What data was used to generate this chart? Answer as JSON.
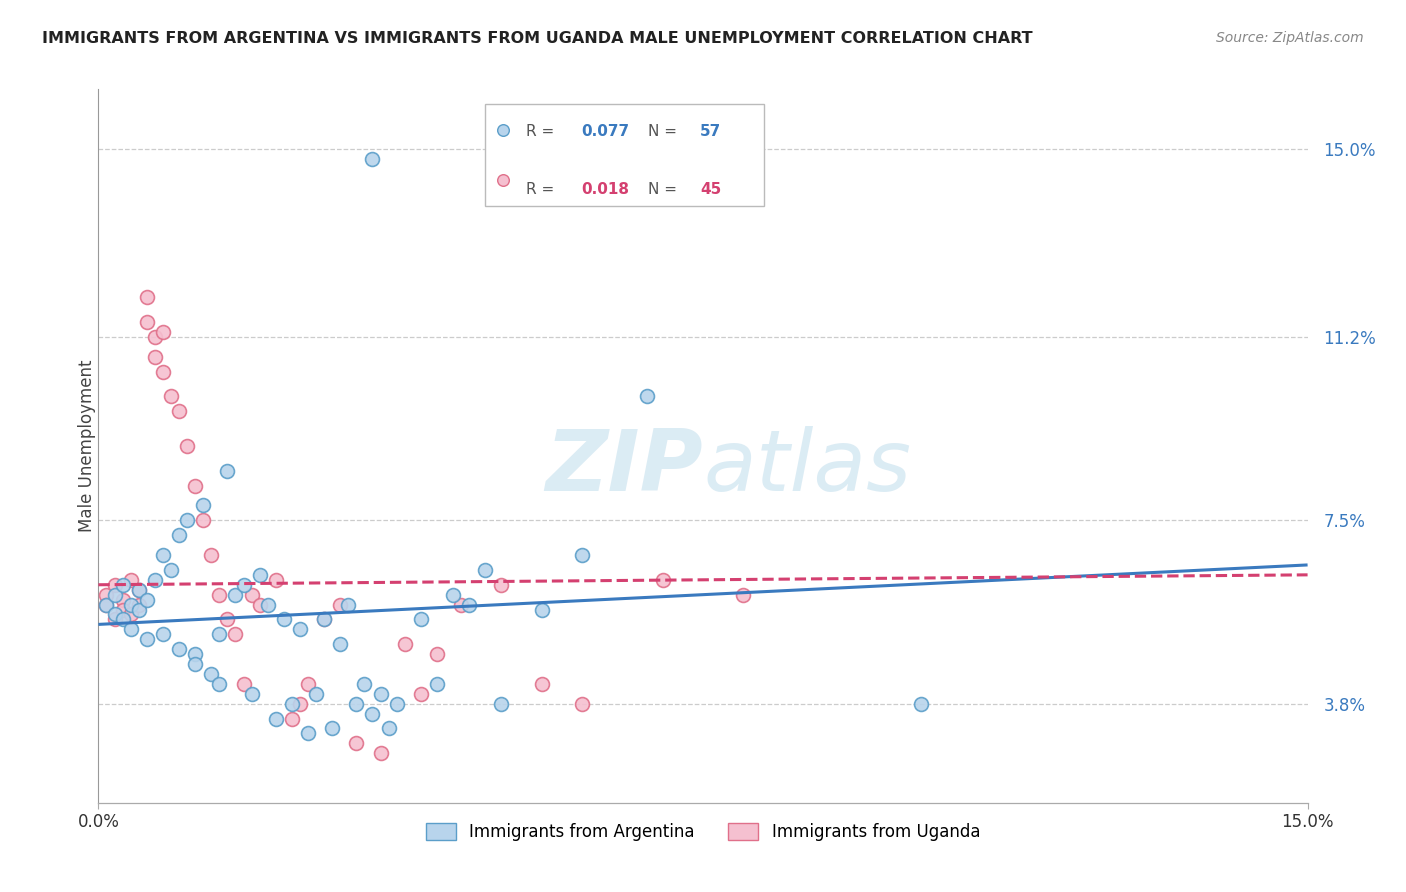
{
  "title": "IMMIGRANTS FROM ARGENTINA VS IMMIGRANTS FROM UGANDA MALE UNEMPLOYMENT CORRELATION CHART",
  "source": "Source: ZipAtlas.com",
  "ylabel": "Male Unemployment",
  "ytick_vals": [
    0.038,
    0.075,
    0.112,
    0.15
  ],
  "ytick_labels": [
    "3.8%",
    "7.5%",
    "11.2%",
    "15.0%"
  ],
  "xmin": 0.0,
  "xmax": 0.15,
  "ymin": 0.018,
  "ymax": 0.162,
  "argentina_color": "#b8d4ec",
  "argentina_edge": "#5b9ec9",
  "uganda_color": "#f5c0d0",
  "uganda_edge": "#e0708a",
  "argentina_line_color": "#3a7abf",
  "uganda_line_color": "#d44070",
  "watermark_color": "#cde4f0",
  "argentina_n": 57,
  "uganda_n": 45,
  "argentina_r": 0.077,
  "uganda_r": 0.018,
  "argentina_x": [
    0.001,
    0.002,
    0.002,
    0.003,
    0.003,
    0.004,
    0.004,
    0.005,
    0.005,
    0.006,
    0.006,
    0.007,
    0.008,
    0.008,
    0.009,
    0.01,
    0.01,
    0.011,
    0.012,
    0.012,
    0.013,
    0.014,
    0.015,
    0.015,
    0.016,
    0.017,
    0.018,
    0.019,
    0.02,
    0.021,
    0.022,
    0.023,
    0.024,
    0.025,
    0.026,
    0.027,
    0.028,
    0.029,
    0.03,
    0.031,
    0.032,
    0.033,
    0.034,
    0.035,
    0.036,
    0.037,
    0.04,
    0.042,
    0.044,
    0.046,
    0.048,
    0.05,
    0.055,
    0.06,
    0.068,
    0.102,
    0.034
  ],
  "argentina_y": [
    0.058,
    0.06,
    0.056,
    0.062,
    0.055,
    0.058,
    0.053,
    0.061,
    0.057,
    0.059,
    0.051,
    0.063,
    0.068,
    0.052,
    0.065,
    0.072,
    0.049,
    0.075,
    0.048,
    0.046,
    0.078,
    0.044,
    0.052,
    0.042,
    0.085,
    0.06,
    0.062,
    0.04,
    0.064,
    0.058,
    0.035,
    0.055,
    0.038,
    0.053,
    0.032,
    0.04,
    0.055,
    0.033,
    0.05,
    0.058,
    0.038,
    0.042,
    0.036,
    0.04,
    0.033,
    0.038,
    0.055,
    0.042,
    0.06,
    0.058,
    0.065,
    0.038,
    0.057,
    0.068,
    0.1,
    0.038,
    0.148
  ],
  "uganda_x": [
    0.001,
    0.001,
    0.002,
    0.002,
    0.003,
    0.003,
    0.004,
    0.004,
    0.005,
    0.005,
    0.006,
    0.006,
    0.007,
    0.007,
    0.008,
    0.008,
    0.009,
    0.01,
    0.011,
    0.012,
    0.013,
    0.014,
    0.015,
    0.016,
    0.017,
    0.018,
    0.019,
    0.02,
    0.022,
    0.024,
    0.025,
    0.026,
    0.028,
    0.03,
    0.032,
    0.035,
    0.038,
    0.04,
    0.042,
    0.045,
    0.05,
    0.055,
    0.06,
    0.07,
    0.08
  ],
  "uganda_y": [
    0.06,
    0.058,
    0.062,
    0.055,
    0.059,
    0.057,
    0.063,
    0.056,
    0.061,
    0.058,
    0.12,
    0.115,
    0.112,
    0.108,
    0.113,
    0.105,
    0.1,
    0.097,
    0.09,
    0.082,
    0.075,
    0.068,
    0.06,
    0.055,
    0.052,
    0.042,
    0.06,
    0.058,
    0.063,
    0.035,
    0.038,
    0.042,
    0.055,
    0.058,
    0.03,
    0.028,
    0.05,
    0.04,
    0.048,
    0.058,
    0.062,
    0.042,
    0.038,
    0.063,
    0.06
  ],
  "arg_line_x0": 0.0,
  "arg_line_y0": 0.054,
  "arg_line_x1": 0.15,
  "arg_line_y1": 0.066,
  "uga_line_x0": 0.0,
  "uga_line_y0": 0.062,
  "uga_line_x1": 0.15,
  "uga_line_y1": 0.064,
  "marker_size": 100,
  "line_width": 2.2
}
